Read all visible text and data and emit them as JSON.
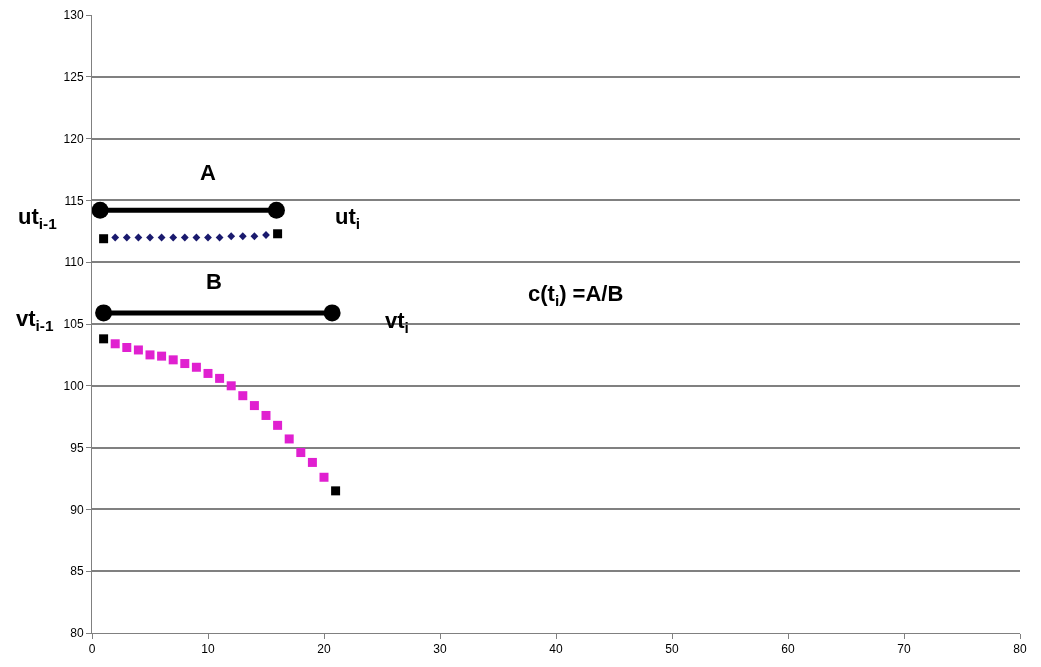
{
  "chart_data": {
    "type": "scatter",
    "series": [
      {
        "type": "line",
        "marker": "circle",
        "color": "#000000",
        "x": [
          0.7,
          15.9
        ],
        "values": [
          114.2,
          114.2
        ]
      },
      {
        "type": "line",
        "marker": "circle",
        "color": "#000000",
        "x": [
          1,
          20.7
        ],
        "values": [
          105.9,
          105.9
        ]
      },
      {
        "marker": "square",
        "color": "#000000",
        "x": [
          1,
          16
        ],
        "values": [
          111.9,
          112.3
        ]
      },
      {
        "marker": "diamond",
        "color": "#1a1a6e",
        "x": [
          2,
          3,
          4,
          5,
          6,
          7,
          8,
          9,
          10,
          11,
          12,
          13,
          14,
          15
        ],
        "values": [
          112.0,
          112.0,
          112.0,
          112.0,
          112.0,
          112.0,
          112.0,
          112.0,
          112.0,
          112.0,
          112.1,
          112.1,
          112.1,
          112.2
        ]
      },
      {
        "marker": "square",
        "color": "#000000",
        "x": [
          1,
          21
        ],
        "values": [
          103.8,
          91.5
        ]
      },
      {
        "marker": "square",
        "color": "#e020d0",
        "x": [
          2,
          3,
          4,
          5,
          6,
          7,
          8,
          9,
          10,
          11,
          12,
          13,
          14,
          15,
          16,
          17,
          18,
          19,
          20
        ],
        "values": [
          103.4,
          103.1,
          102.9,
          102.5,
          102.4,
          102.1,
          101.8,
          101.5,
          101.0,
          100.6,
          100.0,
          99.2,
          98.4,
          97.6,
          96.8,
          95.7,
          94.6,
          93.8,
          92.6
        ]
      }
    ],
    "annotations": [
      "A",
      "ut$_{i-1}$",
      "ut$_{i}$",
      "B",
      "vt$_{i-1}$",
      "vt$_{i}$",
      "c(t$_{i}$) =A/B"
    ],
    "xlim": [
      0,
      80
    ],
    "xticks": [
      0,
      10,
      20,
      30,
      40,
      50,
      60,
      70,
      80
    ],
    "ylim": [
      80,
      130
    ],
    "yticks": [
      80,
      85,
      90,
      95,
      100,
      105,
      110,
      115,
      120,
      125,
      130
    ],
    "grid": "y"
  }
}
